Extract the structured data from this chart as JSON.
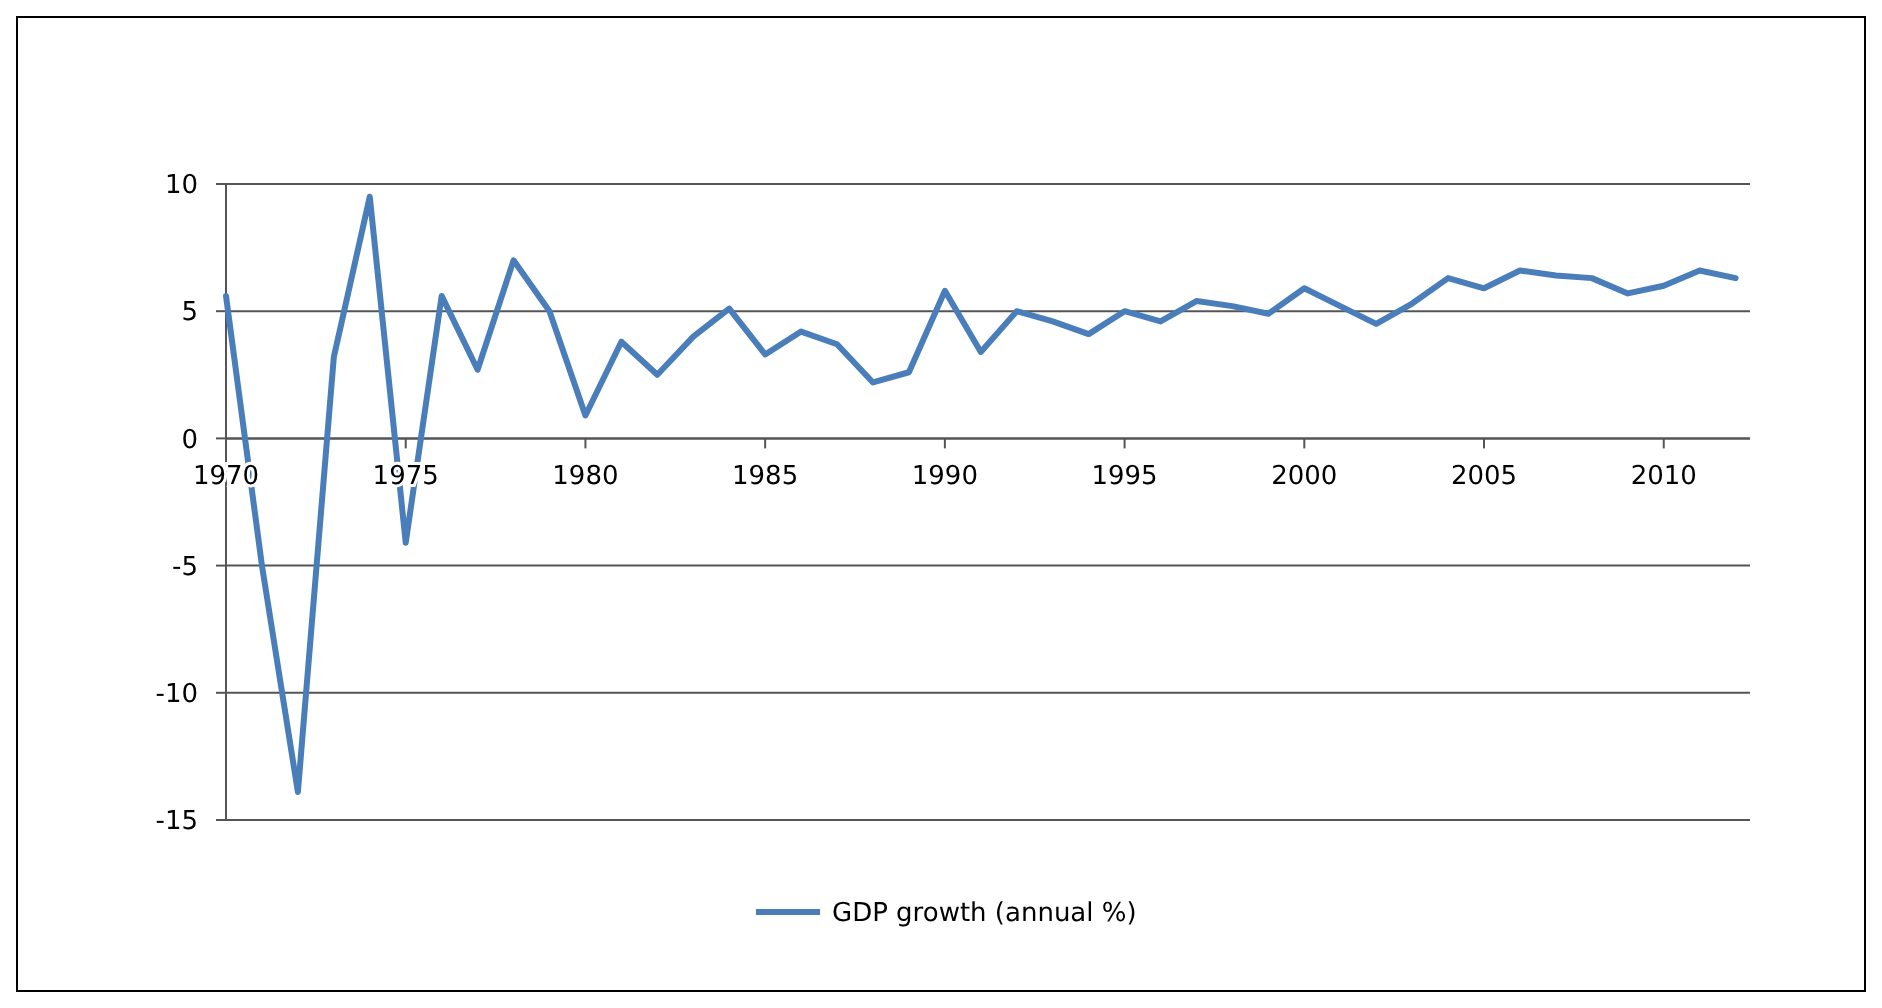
{
  "chart_data": {
    "type": "line",
    "x": [
      1970,
      1971,
      1972,
      1973,
      1974,
      1975,
      1976,
      1977,
      1978,
      1979,
      1980,
      1981,
      1982,
      1983,
      1984,
      1985,
      1986,
      1987,
      1988,
      1989,
      1990,
      1991,
      1992,
      1993,
      1994,
      1995,
      1996,
      1997,
      1998,
      1999,
      2000,
      2001,
      2002,
      2003,
      2004,
      2005,
      2006,
      2007,
      2008,
      2009,
      2010,
      2011,
      2012
    ],
    "series": [
      {
        "name": "GDP growth (annual %)",
        "color": "#4a7ebb",
        "values": [
          5.6,
          -5,
          -13.9,
          3.2,
          9.5,
          -4.1,
          5.6,
          2.7,
          7.0,
          5.0,
          0.9,
          3.8,
          2.5,
          4.0,
          5.1,
          3.3,
          4.2,
          3.7,
          2.2,
          2.6,
          5.8,
          3.4,
          5.0,
          4.6,
          4.1,
          5.0,
          4.6,
          5.4,
          5.2,
          4.9,
          5.9,
          5.2,
          4.5,
          5.3,
          6.3,
          5.9,
          6.6,
          6.4,
          6.3,
          5.7,
          6.0,
          6.6,
          6.3
        ]
      }
    ],
    "xlim": [
      1970,
      2012.4
    ],
    "xticks": [
      1970,
      1975,
      1980,
      1985,
      1990,
      1995,
      2000,
      2005,
      2010
    ],
    "ylim": [
      -15,
      10
    ],
    "yticks": [
      -15,
      -10,
      -5,
      0,
      5,
      10
    ],
    "grid": "y",
    "legend": "bottom",
    "marker": "none",
    "line_style": "solid"
  }
}
